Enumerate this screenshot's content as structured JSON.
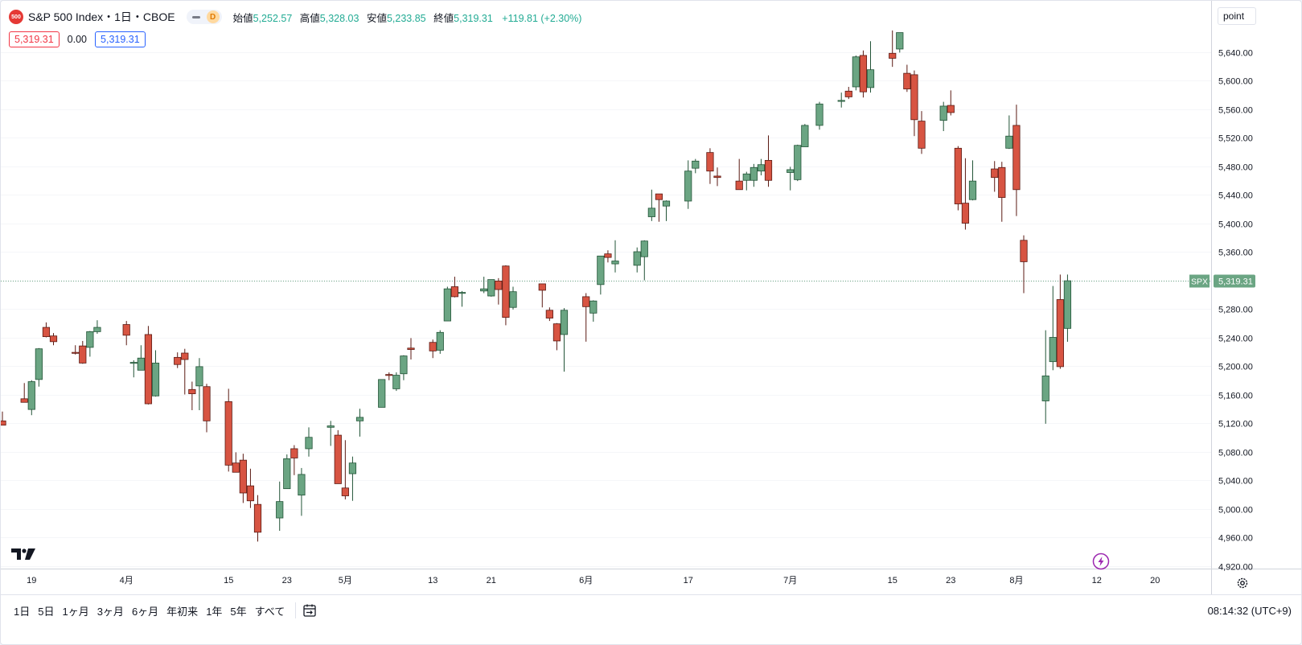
{
  "header": {
    "symbol_badge": "500",
    "title": "S&P 500 Index・1日・CBOE",
    "interval_badge": "D",
    "ohlc": [
      {
        "label": "始値",
        "value": "5,252.57"
      },
      {
        "label": "高値",
        "value": "5,328.03"
      },
      {
        "label": "安値",
        "value": "5,233.85"
      },
      {
        "label": "終値",
        "value": "5,319.31"
      }
    ],
    "change": "+119.81 (+2.30%)"
  },
  "price_boxes": {
    "sell": "5,319.31",
    "spread": "0.00",
    "buy": "5,319.31"
  },
  "scale_mode": "point",
  "price_tag": {
    "symbol": "SPX",
    "value": "5,319.31"
  },
  "time_ranges": [
    "1日",
    "5日",
    "1ヶ月",
    "3ヶ月",
    "6ヶ月",
    "年初来",
    "1年",
    "5年",
    "すべて"
  ],
  "clock": "08:14:32 (UTC+9)",
  "icons": {
    "logo": "tradingview-logo-icon",
    "calendar": "calendar-goto-icon",
    "settings": "settings-icon",
    "flash": "flash-icon"
  },
  "colors": {
    "up": "#6ba583",
    "down": "#d75442",
    "up_border": "#225437",
    "down_border": "#5b1a13",
    "tag": "#6ba583"
  },
  "chart_data": {
    "type": "candlestick",
    "title": "S&P 500 Index",
    "interval": "1日",
    "ylim": [
      4900,
      5680
    ],
    "y_ticks": [
      4920,
      4960,
      5000,
      5040,
      5080,
      5120,
      5160,
      5200,
      5240,
      5280,
      5320,
      5360,
      5400,
      5440,
      5480,
      5520,
      5560,
      5600,
      5640
    ],
    "y_tick_labels": [
      "4,920.00",
      "4,960.00",
      "5,000.00",
      "5,040.00",
      "5,080.00",
      "5,120.00",
      "5,160.00",
      "5,200.00",
      "5,240.00",
      "5,280.00",
      "5,320.00",
      "5,360.00",
      "5,400.00",
      "5,440.00",
      "5,480.00",
      "5,520.00",
      "5,560.00",
      "5,600.00",
      "5,640.00"
    ],
    "x_ticks": [
      {
        "date": "2024-03-19",
        "label": "19"
      },
      {
        "date": "2024-04-01",
        "label": "4月"
      },
      {
        "date": "2024-04-15",
        "label": "15"
      },
      {
        "date": "2024-04-23",
        "label": "23"
      },
      {
        "date": "2024-05-01",
        "label": "5月"
      },
      {
        "date": "2024-05-13",
        "label": "13"
      },
      {
        "date": "2024-05-21",
        "label": "21"
      },
      {
        "date": "2024-06-03",
        "label": "6月"
      },
      {
        "date": "2024-06-17",
        "label": "17"
      },
      {
        "date": "2024-07-01",
        "label": "7月"
      },
      {
        "date": "2024-07-15",
        "label": "15"
      },
      {
        "date": "2024-07-23",
        "label": "23"
      },
      {
        "date": "2024-08-01",
        "label": "8月"
      },
      {
        "date": "2024-08-12",
        "label": "12"
      },
      {
        "date": "2024-08-20",
        "label": "20"
      }
    ],
    "last_price": 5319.31,
    "candles": [
      {
        "date": "2024-03-15",
        "o": 5123,
        "h": 5136,
        "l": 5117,
        "c": 5117
      },
      {
        "date": "2024-03-18",
        "o": 5154,
        "h": 5176,
        "l": 5150,
        "c": 5149
      },
      {
        "date": "2024-03-19",
        "o": 5139,
        "h": 5180,
        "l": 5131,
        "c": 5178
      },
      {
        "date": "2024-03-20",
        "o": 5181,
        "h": 5225,
        "l": 5171,
        "c": 5224
      },
      {
        "date": "2024-03-21",
        "o": 5254,
        "h": 5261,
        "l": 5240,
        "c": 5241
      },
      {
        "date": "2024-03-22",
        "o": 5242,
        "h": 5246,
        "l": 5229,
        "c": 5234
      },
      {
        "date": "2024-03-25",
        "o": 5219,
        "h": 5229,
        "l": 5216,
        "c": 5218
      },
      {
        "date": "2024-03-26",
        "o": 5228,
        "h": 5235,
        "l": 5203,
        "c": 5204
      },
      {
        "date": "2024-03-27",
        "o": 5226,
        "h": 5249,
        "l": 5213,
        "c": 5248
      },
      {
        "date": "2024-03-28",
        "o": 5248,
        "h": 5264,
        "l": 5245,
        "c": 5254
      },
      {
        "date": "2024-04-01",
        "o": 5258,
        "h": 5263,
        "l": 5229,
        "c": 5243
      },
      {
        "date": "2024-04-02",
        "o": 5205,
        "h": 5208,
        "l": 5184,
        "c": 5205
      },
      {
        "date": "2024-04-03",
        "o": 5194,
        "h": 5229,
        "l": 5194,
        "c": 5211
      },
      {
        "date": "2024-04-04",
        "o": 5244,
        "h": 5256,
        "l": 5146,
        "c": 5147
      },
      {
        "date": "2024-04-05",
        "o": 5158,
        "h": 5222,
        "l": 5157,
        "c": 5204
      },
      {
        "date": "2024-04-08",
        "o": 5212,
        "h": 5219,
        "l": 5197,
        "c": 5202
      },
      {
        "date": "2024-04-09",
        "o": 5218,
        "h": 5224,
        "l": 5160,
        "c": 5209
      },
      {
        "date": "2024-04-10",
        "o": 5167,
        "h": 5178,
        "l": 5138,
        "c": 5161
      },
      {
        "date": "2024-04-11",
        "o": 5172,
        "h": 5211,
        "l": 5138,
        "c": 5199
      },
      {
        "date": "2024-04-12",
        "o": 5171,
        "h": 5175,
        "l": 5107,
        "c": 5123
      },
      {
        "date": "2024-04-15",
        "o": 5150,
        "h": 5168,
        "l": 5052,
        "c": 5061
      },
      {
        "date": "2024-04-16",
        "o": 5064,
        "h": 5079,
        "l": 5053,
        "c": 5051
      },
      {
        "date": "2024-04-17",
        "o": 5068,
        "h": 5077,
        "l": 5008,
        "c": 5022
      },
      {
        "date": "2024-04-18",
        "o": 5032,
        "h": 5056,
        "l": 5001,
        "c": 5011
      },
      {
        "date": "2024-04-19",
        "o": 5006,
        "h": 5019,
        "l": 4954,
        "c": 4967
      },
      {
        "date": "2024-04-22",
        "o": 4987,
        "h": 5038,
        "l": 4969,
        "c": 5010
      },
      {
        "date": "2024-04-23",
        "o": 5028,
        "h": 5076,
        "l": 5028,
        "c": 5070
      },
      {
        "date": "2024-04-24",
        "o": 5084,
        "h": 5089,
        "l": 5047,
        "c": 5071
      },
      {
        "date": "2024-04-25",
        "o": 5019,
        "h": 5057,
        "l": 4990,
        "c": 5048
      },
      {
        "date": "2024-04-26",
        "o": 5084,
        "h": 5114,
        "l": 5073,
        "c": 5100
      },
      {
        "date": "2024-04-29",
        "o": 5114,
        "h": 5123,
        "l": 5088,
        "c": 5116
      },
      {
        "date": "2024-04-30",
        "o": 5103,
        "h": 5110,
        "l": 5035,
        "c": 5035
      },
      {
        "date": "2024-05-01",
        "o": 5029,
        "h": 5096,
        "l": 5013,
        "c": 5018
      },
      {
        "date": "2024-05-02",
        "o": 5049,
        "h": 5073,
        "l": 5011,
        "c": 5064
      },
      {
        "date": "2024-05-03",
        "o": 5123,
        "h": 5140,
        "l": 5101,
        "c": 5128
      },
      {
        "date": "2024-05-06",
        "o": 5142,
        "h": 5181,
        "l": 5142,
        "c": 5181
      },
      {
        "date": "2024-05-07",
        "o": 5188,
        "h": 5191,
        "l": 5180,
        "c": 5187
      },
      {
        "date": "2024-05-08",
        "o": 5168,
        "h": 5191,
        "l": 5165,
        "c": 5187
      },
      {
        "date": "2024-05-09",
        "o": 5189,
        "h": 5215,
        "l": 5180,
        "c": 5214
      },
      {
        "date": "2024-05-10",
        "o": 5225,
        "h": 5239,
        "l": 5209,
        "c": 5223
      },
      {
        "date": "2024-05-13",
        "o": 5233,
        "h": 5237,
        "l": 5211,
        "c": 5221
      },
      {
        "date": "2024-05-14",
        "o": 5222,
        "h": 5250,
        "l": 5217,
        "c": 5247
      },
      {
        "date": "2024-05-15",
        "o": 5263,
        "h": 5311,
        "l": 5263,
        "c": 5308
      },
      {
        "date": "2024-05-16",
        "o": 5311,
        "h": 5325,
        "l": 5296,
        "c": 5297
      },
      {
        "date": "2024-05-17",
        "o": 5303,
        "h": 5305,
        "l": 5283,
        "c": 5303
      },
      {
        "date": "2024-05-20",
        "o": 5305,
        "h": 5325,
        "l": 5302,
        "c": 5308
      },
      {
        "date": "2024-05-21",
        "o": 5298,
        "h": 5315,
        "l": 5297,
        "c": 5321
      },
      {
        "date": "2024-05-22",
        "o": 5319,
        "h": 5323,
        "l": 5286,
        "c": 5307
      },
      {
        "date": "2024-05-23",
        "o": 5340,
        "h": 5341,
        "l": 5257,
        "c": 5268
      },
      {
        "date": "2024-05-24",
        "o": 5282,
        "h": 5311,
        "l": 5279,
        "c": 5304
      },
      {
        "date": "2024-05-28",
        "o": 5315,
        "h": 5315,
        "l": 5282,
        "c": 5306
      },
      {
        "date": "2024-05-29",
        "o": 5278,
        "h": 5282,
        "l": 5263,
        "c": 5267
      },
      {
        "date": "2024-05-30",
        "o": 5259,
        "h": 5260,
        "l": 5222,
        "c": 5235
      },
      {
        "date": "2024-05-31",
        "o": 5244,
        "h": 5281,
        "l": 5192,
        "c": 5278
      },
      {
        "date": "2024-06-03",
        "o": 5297,
        "h": 5302,
        "l": 5234,
        "c": 5283
      },
      {
        "date": "2024-06-04",
        "o": 5274,
        "h": 5292,
        "l": 5262,
        "c": 5291
      },
      {
        "date": "2024-06-05",
        "o": 5314,
        "h": 5354,
        "l": 5300,
        "c": 5354
      },
      {
        "date": "2024-06-06",
        "o": 5357,
        "h": 5362,
        "l": 5345,
        "c": 5352
      },
      {
        "date": "2024-06-07",
        "o": 5343,
        "h": 5376,
        "l": 5331,
        "c": 5347
      },
      {
        "date": "2024-06-10",
        "o": 5341,
        "h": 5366,
        "l": 5331,
        "c": 5360
      },
      {
        "date": "2024-06-11",
        "o": 5353,
        "h": 5376,
        "l": 5320,
        "c": 5375
      },
      {
        "date": "2024-06-12",
        "o": 5409,
        "h": 5447,
        "l": 5403,
        "c": 5421
      },
      {
        "date": "2024-06-13",
        "o": 5441,
        "h": 5441,
        "l": 5402,
        "c": 5433
      },
      {
        "date": "2024-06-14",
        "o": 5424,
        "h": 5432,
        "l": 5403,
        "c": 5431
      },
      {
        "date": "2024-06-17",
        "o": 5431,
        "h": 5488,
        "l": 5420,
        "c": 5473
      },
      {
        "date": "2024-06-18",
        "o": 5477,
        "h": 5490,
        "l": 5470,
        "c": 5487
      },
      {
        "date": "2024-06-20",
        "o": 5499,
        "h": 5505,
        "l": 5455,
        "c": 5473
      },
      {
        "date": "2024-06-21",
        "o": 5466,
        "h": 5478,
        "l": 5452,
        "c": 5464
      },
      {
        "date": "2024-06-24",
        "o": 5459,
        "h": 5490,
        "l": 5447,
        "c": 5447
      },
      {
        "date": "2024-06-25",
        "o": 5460,
        "h": 5472,
        "l": 5446,
        "c": 5469
      },
      {
        "date": "2024-06-26",
        "o": 5460,
        "h": 5483,
        "l": 5451,
        "c": 5478
      },
      {
        "date": "2024-06-27",
        "o": 5473,
        "h": 5490,
        "l": 5467,
        "c": 5482
      },
      {
        "date": "2024-06-28",
        "o": 5488,
        "h": 5523,
        "l": 5451,
        "c": 5460
      },
      {
        "date": "2024-07-01",
        "o": 5471,
        "h": 5479,
        "l": 5446,
        "c": 5475
      },
      {
        "date": "2024-07-02",
        "o": 5461,
        "h": 5510,
        "l": 5459,
        "c": 5509
      },
      {
        "date": "2024-07-03",
        "o": 5507,
        "h": 5539,
        "l": 5507,
        "c": 5537
      },
      {
        "date": "2024-07-05",
        "o": 5537,
        "h": 5570,
        "l": 5531,
        "c": 5567
      },
      {
        "date": "2024-07-08",
        "o": 5572,
        "h": 5583,
        "l": 5562,
        "c": 5572
      },
      {
        "date": "2024-07-09",
        "o": 5585,
        "h": 5591,
        "l": 5574,
        "c": 5577
      },
      {
        "date": "2024-07-10",
        "o": 5591,
        "h": 5635,
        "l": 5586,
        "c": 5633
      },
      {
        "date": "2024-07-11",
        "o": 5635,
        "h": 5642,
        "l": 5576,
        "c": 5584
      },
      {
        "date": "2024-07-12",
        "o": 5590,
        "h": 5655,
        "l": 5583,
        "c": 5615
      },
      {
        "date": "2024-07-15",
        "o": 5638,
        "h": 5670,
        "l": 5619,
        "c": 5631
      },
      {
        "date": "2024-07-16",
        "o": 5644,
        "h": 5667,
        "l": 5639,
        "c": 5667
      },
      {
        "date": "2024-07-17",
        "o": 5610,
        "h": 5622,
        "l": 5584,
        "c": 5588
      },
      {
        "date": "2024-07-18",
        "o": 5608,
        "h": 5614,
        "l": 5522,
        "c": 5545
      },
      {
        "date": "2024-07-19",
        "o": 5543,
        "h": 5557,
        "l": 5497,
        "c": 5505
      },
      {
        "date": "2024-07-22",
        "o": 5544,
        "h": 5570,
        "l": 5529,
        "c": 5564
      },
      {
        "date": "2024-07-23",
        "o": 5565,
        "h": 5586,
        "l": 5551,
        "c": 5555
      },
      {
        "date": "2024-07-24",
        "o": 5505,
        "h": 5508,
        "l": 5418,
        "c": 5427
      },
      {
        "date": "2024-07-25",
        "o": 5428,
        "h": 5491,
        "l": 5391,
        "c": 5400
      },
      {
        "date": "2024-07-26",
        "o": 5433,
        "h": 5488,
        "l": 5432,
        "c": 5459
      },
      {
        "date": "2024-07-29",
        "o": 5476,
        "h": 5487,
        "l": 5444,
        "c": 5464
      },
      {
        "date": "2024-07-30",
        "o": 5478,
        "h": 5486,
        "l": 5402,
        "c": 5436
      },
      {
        "date": "2024-07-31",
        "o": 5505,
        "h": 5551,
        "l": 5504,
        "c": 5522
      },
      {
        "date": "2024-08-01",
        "o": 5537,
        "h": 5566,
        "l": 5410,
        "c": 5447
      },
      {
        "date": "2024-08-02",
        "o": 5376,
        "h": 5383,
        "l": 5302,
        "c": 5346
      },
      {
        "date": "2024-08-05",
        "o": 5151,
        "h": 5250,
        "l": 5119,
        "c": 5186
      },
      {
        "date": "2024-08-06",
        "o": 5206,
        "h": 5312,
        "l": 5194,
        "c": 5240
      },
      {
        "date": "2024-08-07",
        "o": 5293,
        "h": 5328,
        "l": 5196,
        "c": 5199
      },
      {
        "date": "2024-08-08",
        "o": 5252.57,
        "h": 5328.03,
        "l": 5233.85,
        "c": 5319.31
      }
    ]
  }
}
